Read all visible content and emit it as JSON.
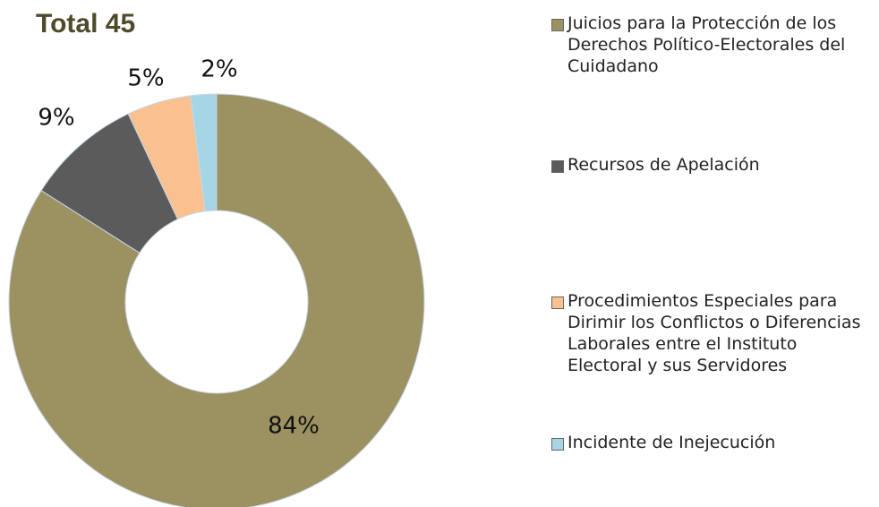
{
  "chart_data": {
    "type": "donut",
    "title": "Total 45",
    "categories": [
      "Juicios para la Protección de los Derechos Político-Electorales del Cuidadano",
      "Recursos de Apelación",
      "Procedimientos Especiales para Dirimir los Conflictos o Diferencias Laborales entre el Instituto Electoral y sus Servidores",
      "Incidente de Inejecución"
    ],
    "values": [
      84,
      9,
      5,
      2
    ],
    "value_labels": [
      "84%",
      "9%",
      "5%",
      "2%"
    ],
    "colors": [
      "#9c9161",
      "#5b5b5b",
      "#f8c18f",
      "#a6d6e6"
    ],
    "legend": "right"
  }
}
